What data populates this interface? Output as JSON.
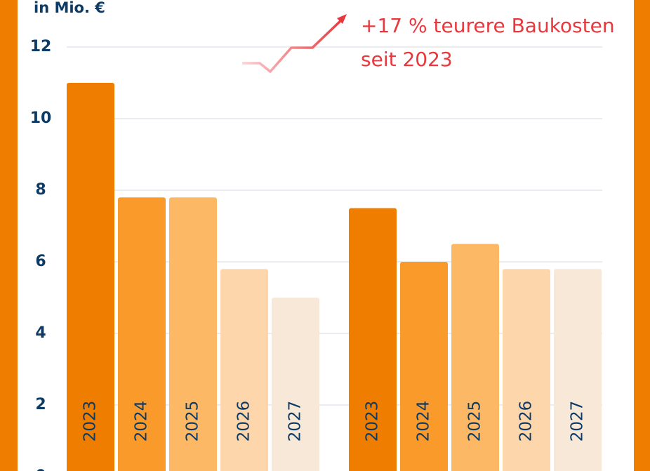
{
  "chart_data": {
    "type": "bar",
    "y_label": "in Mio. €",
    "annotation": [
      "+17 % teurere Baukosten",
      "seit 2023"
    ],
    "categories": [
      null,
      null
    ],
    "series": [
      {
        "name": "2023",
        "color": "#ef7d00",
        "values": [
          11,
          7.5
        ]
      },
      {
        "name": "2024",
        "color": "#fa9a2a",
        "values": [
          7.8,
          6.0
        ]
      },
      {
        "name": "2025",
        "color": "#fdb865",
        "values": [
          7.8,
          6.5
        ]
      },
      {
        "name": "2026",
        "color": "#fdd6ab",
        "values": [
          5.8,
          5.8
        ]
      },
      {
        "name": "2027",
        "color": "#f7e8d8",
        "values": [
          5.0,
          5.8
        ]
      }
    ],
    "ylim": [
      0,
      12
    ],
    "yticks": [
      0,
      2,
      4,
      6,
      8,
      10,
      12
    ],
    "grid": true
  }
}
